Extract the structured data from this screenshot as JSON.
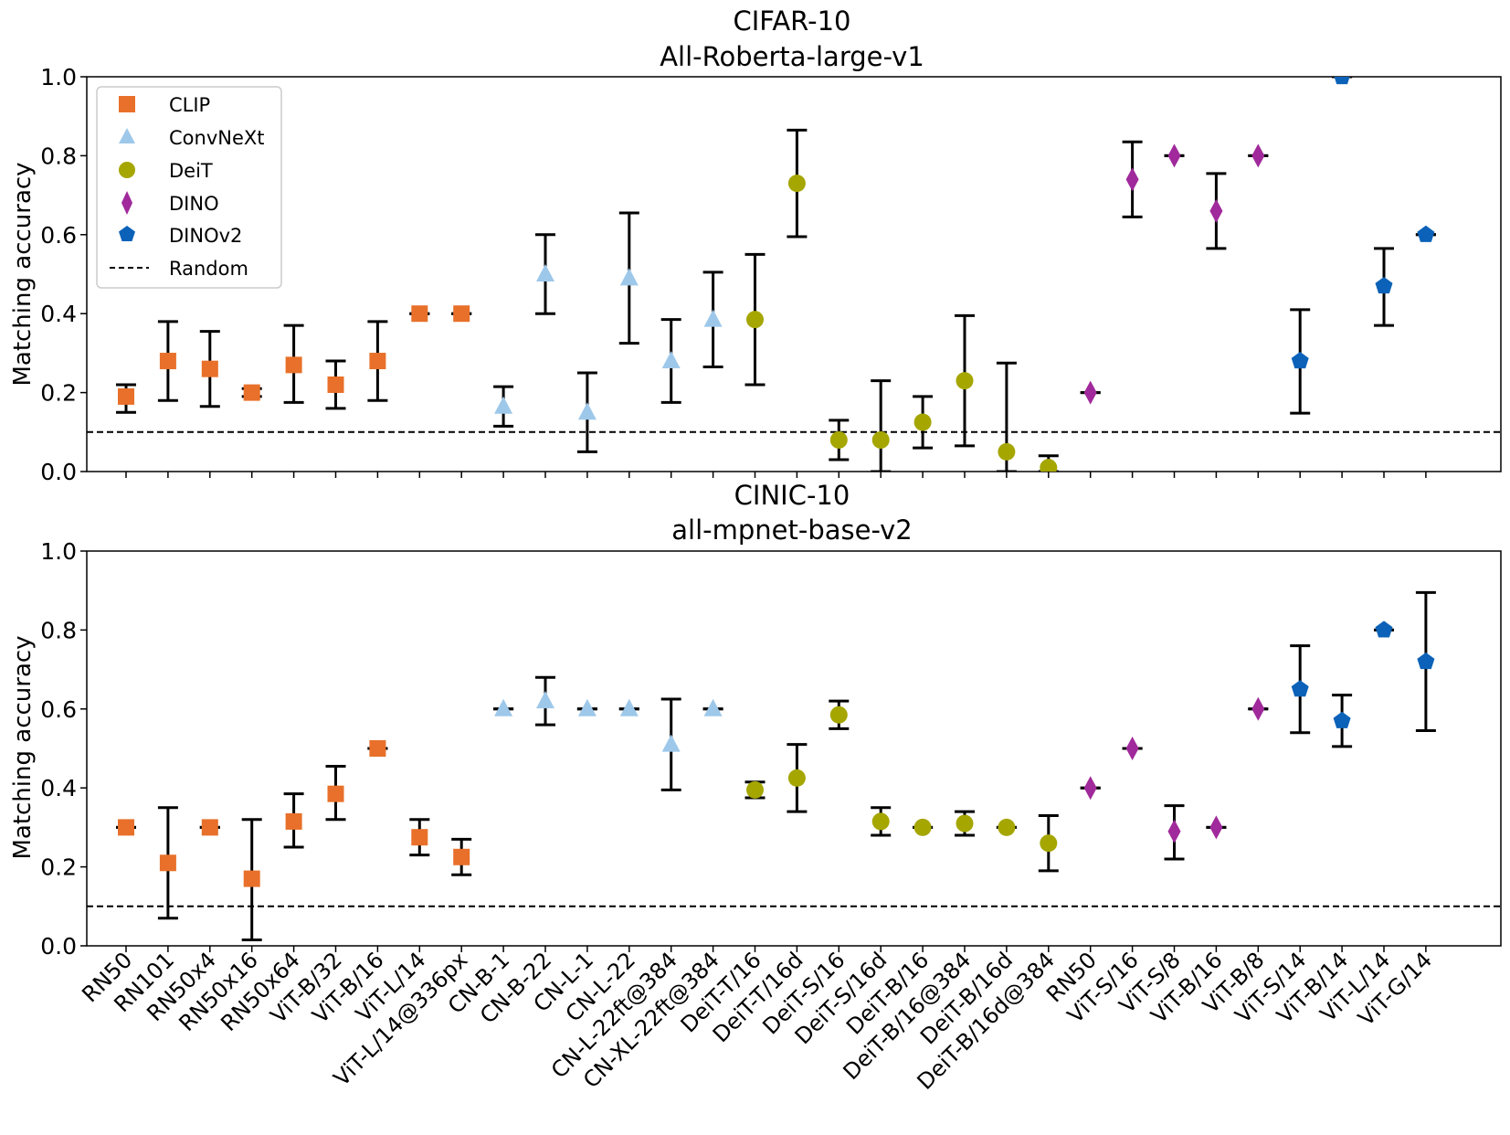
{
  "chart_data": [
    {
      "type": "scatter",
      "title": "CIFAR-10",
      "subtitle": "All-Roberta-large-v1",
      "ylabel": "Matching accuracy",
      "xlabel": "",
      "ylim": [
        0,
        1
      ],
      "yticks": [
        "0.0",
        "0.2",
        "0.4",
        "0.6",
        "0.8",
        "1.0"
      ],
      "random_baseline": 0.1,
      "legend_position": "top-left",
      "values": [
        0.19,
        0.28,
        0.26,
        0.2,
        0.27,
        0.22,
        0.28,
        0.4,
        0.4,
        0.165,
        0.5,
        0.15,
        0.49,
        0.28,
        0.385,
        0.385,
        0.73,
        0.08,
        0.08,
        0.125,
        0.23,
        0.05,
        0.01,
        0.2,
        0.74,
        0.8,
        0.66,
        0.8,
        0.28,
        1.0,
        0.47,
        0.6
      ],
      "err_low": [
        0.15,
        0.18,
        0.165,
        0.19,
        0.175,
        0.16,
        0.18,
        0.4,
        0.4,
        0.115,
        0.4,
        0.05,
        0.325,
        0.175,
        0.265,
        0.22,
        0.595,
        0.03,
        0.0,
        0.06,
        0.065,
        0.0,
        0.0,
        0.2,
        0.645,
        0.8,
        0.565,
        0.8,
        0.148,
        1.0,
        0.37,
        0.6
      ],
      "err_high": [
        0.22,
        0.38,
        0.355,
        0.21,
        0.37,
        0.28,
        0.38,
        0.4,
        0.4,
        0.215,
        0.6,
        0.25,
        0.655,
        0.385,
        0.505,
        0.55,
        0.865,
        0.13,
        0.23,
        0.19,
        0.395,
        0.275,
        0.04,
        0.2,
        0.835,
        0.8,
        0.755,
        0.8,
        0.41,
        1.0,
        0.565,
        0.6
      ]
    },
    {
      "type": "scatter",
      "title": "CINIC-10",
      "subtitle": "all-mpnet-base-v2",
      "ylabel": "Matching accuracy",
      "xlabel": "",
      "ylim": [
        0,
        1
      ],
      "yticks": [
        "0.0",
        "0.2",
        "0.4",
        "0.6",
        "0.8",
        "1.0"
      ],
      "random_baseline": 0.1,
      "categories": [
        "RN50",
        "RN101",
        "RN50x4",
        "RN50x16",
        "RN50x64",
        "ViT-B/32",
        "ViT-B/16",
        "ViT-L/14",
        "ViT-L/14@336px",
        "CN-B-1",
        "CN-B-22",
        "CN-L-1",
        "CN-L-22",
        "CN-L-22ft@384",
        "CN-XL-22ft@384",
        "DeiT-T/16",
        "DeiT-T/16d",
        "DeiT-S/16",
        "DeiT-S/16d",
        "DeiT-B/16",
        "DeiT-B/16@384",
        "DeiT-B/16d",
        "DeiT-B/16d@384",
        "RN50",
        "ViT-S/16",
        "ViT-S/8",
        "ViT-B/16",
        "ViT-B/8",
        "ViT-S/14",
        "ViT-B/14",
        "ViT-L/14",
        "ViT-G/14"
      ],
      "values": [
        0.3,
        0.21,
        0.3,
        0.17,
        0.315,
        0.385,
        0.5,
        0.275,
        0.225,
        0.6,
        0.62,
        0.6,
        0.6,
        0.51,
        0.6,
        0.395,
        0.425,
        0.585,
        0.315,
        0.3,
        0.31,
        0.3,
        0.26,
        0.4,
        0.5,
        0.29,
        0.3,
        0.6,
        0.65,
        0.57,
        0.8,
        0.72
      ],
      "err_low": [
        0.3,
        0.07,
        0.3,
        0.015,
        0.25,
        0.32,
        0.5,
        0.23,
        0.18,
        0.6,
        0.56,
        0.6,
        0.6,
        0.395,
        0.6,
        0.375,
        0.34,
        0.55,
        0.28,
        0.3,
        0.28,
        0.3,
        0.19,
        0.4,
        0.5,
        0.22,
        0.3,
        0.6,
        0.54,
        0.505,
        0.8,
        0.545
      ],
      "err_high": [
        0.3,
        0.35,
        0.3,
        0.32,
        0.385,
        0.455,
        0.5,
        0.32,
        0.27,
        0.6,
        0.68,
        0.6,
        0.6,
        0.625,
        0.6,
        0.415,
        0.51,
        0.62,
        0.35,
        0.3,
        0.34,
        0.3,
        0.33,
        0.4,
        0.5,
        0.355,
        0.3,
        0.6,
        0.76,
        0.635,
        0.8,
        0.895
      ]
    }
  ],
  "groups": [
    {
      "name": "CLIP",
      "marker": "square",
      "color": "#e8702a",
      "start": 0,
      "end": 8
    },
    {
      "name": "ConvNeXt",
      "marker": "triangle",
      "color": "#9ec8ea",
      "start": 9,
      "end": 14
    },
    {
      "name": "DeiT",
      "marker": "circle",
      "color": "#a5a600",
      "start": 15,
      "end": 22
    },
    {
      "name": "DINO",
      "marker": "diamond",
      "color": "#a0299b",
      "start": 23,
      "end": 27
    },
    {
      "name": "DINOv2",
      "marker": "pentagon",
      "color": "#0b62b8",
      "start": 28,
      "end": 31
    }
  ],
  "legend": {
    "items": [
      "CLIP",
      "ConvNeXt",
      "DeiT",
      "DINO",
      "DINOv2",
      "Random"
    ]
  }
}
